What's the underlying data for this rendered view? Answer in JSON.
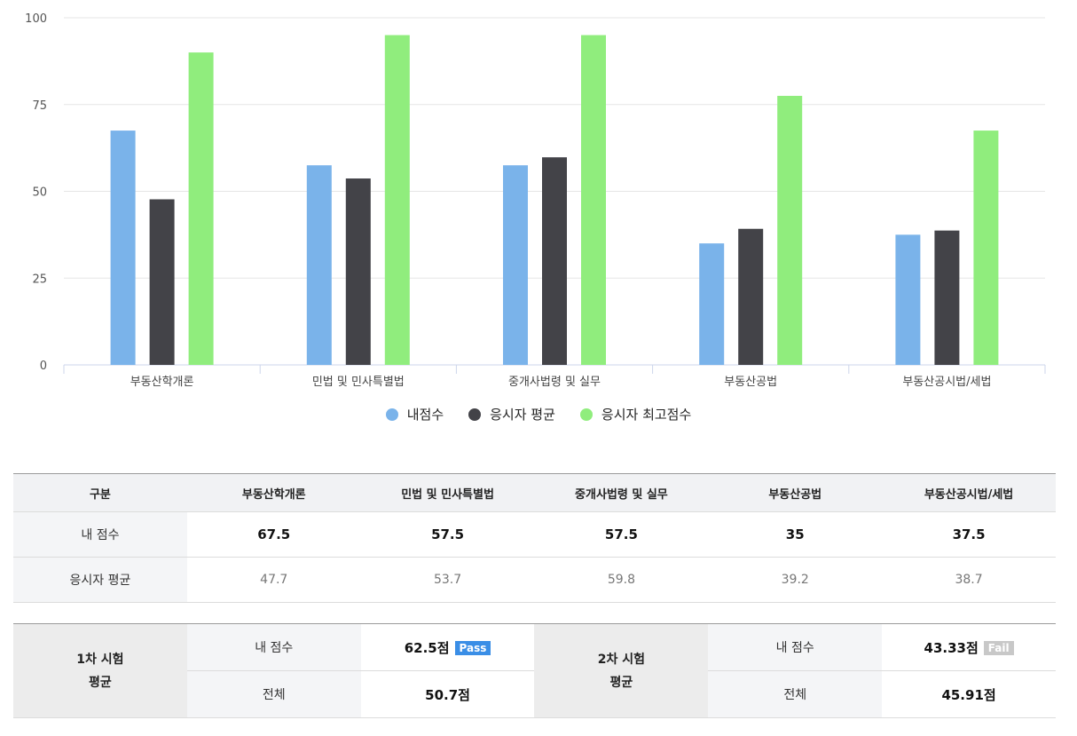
{
  "chart_data": {
    "type": "bar",
    "categories": [
      "부동산학개론",
      "민법 및 민사특별법",
      "중개사법령 및 실무",
      "부동산공법",
      "부동산공시법/세법"
    ],
    "series": [
      {
        "name": "내점수",
        "color": "#7ab3ea",
        "values": [
          67.5,
          57.5,
          57.5,
          35,
          37.5
        ]
      },
      {
        "name": "응시자 평균",
        "color": "#434348",
        "values": [
          47.7,
          53.7,
          59.8,
          39.2,
          38.7
        ]
      },
      {
        "name": "응시자 최고점수",
        "color": "#90ed7d",
        "values": [
          90,
          95,
          95,
          77.5,
          67.5
        ]
      }
    ],
    "ylim": [
      0,
      100
    ],
    "yticks": [
      0,
      25,
      50,
      75,
      100
    ],
    "grid": true,
    "legend": "bottom-center"
  },
  "score_table": {
    "header": [
      "구분",
      "부동산학개론",
      "민법 및 민사특별법",
      "중개사법령 및 실무",
      "부동산공법",
      "부동산공시법/세법"
    ],
    "my_row": {
      "label": "내 점수",
      "values": [
        "67.5",
        "57.5",
        "57.5",
        "35",
        "37.5"
      ]
    },
    "avg_row": {
      "label": "응시자 평균",
      "values": [
        "47.7",
        "53.7",
        "59.8",
        "39.2",
        "38.7"
      ]
    }
  },
  "exam_summary": {
    "first": {
      "title_line1": "1차 시험",
      "title_line2": "평균",
      "my_label": "내 점수",
      "my_score": "62.5점",
      "badge": "Pass",
      "total_label": "전체",
      "total_score": "50.7점"
    },
    "second": {
      "title_line1": "2차 시험",
      "title_line2": "평균",
      "my_label": "내 점수",
      "my_score": "43.33점",
      "badge": "Fail",
      "total_label": "전체",
      "total_score": "45.91점"
    }
  }
}
